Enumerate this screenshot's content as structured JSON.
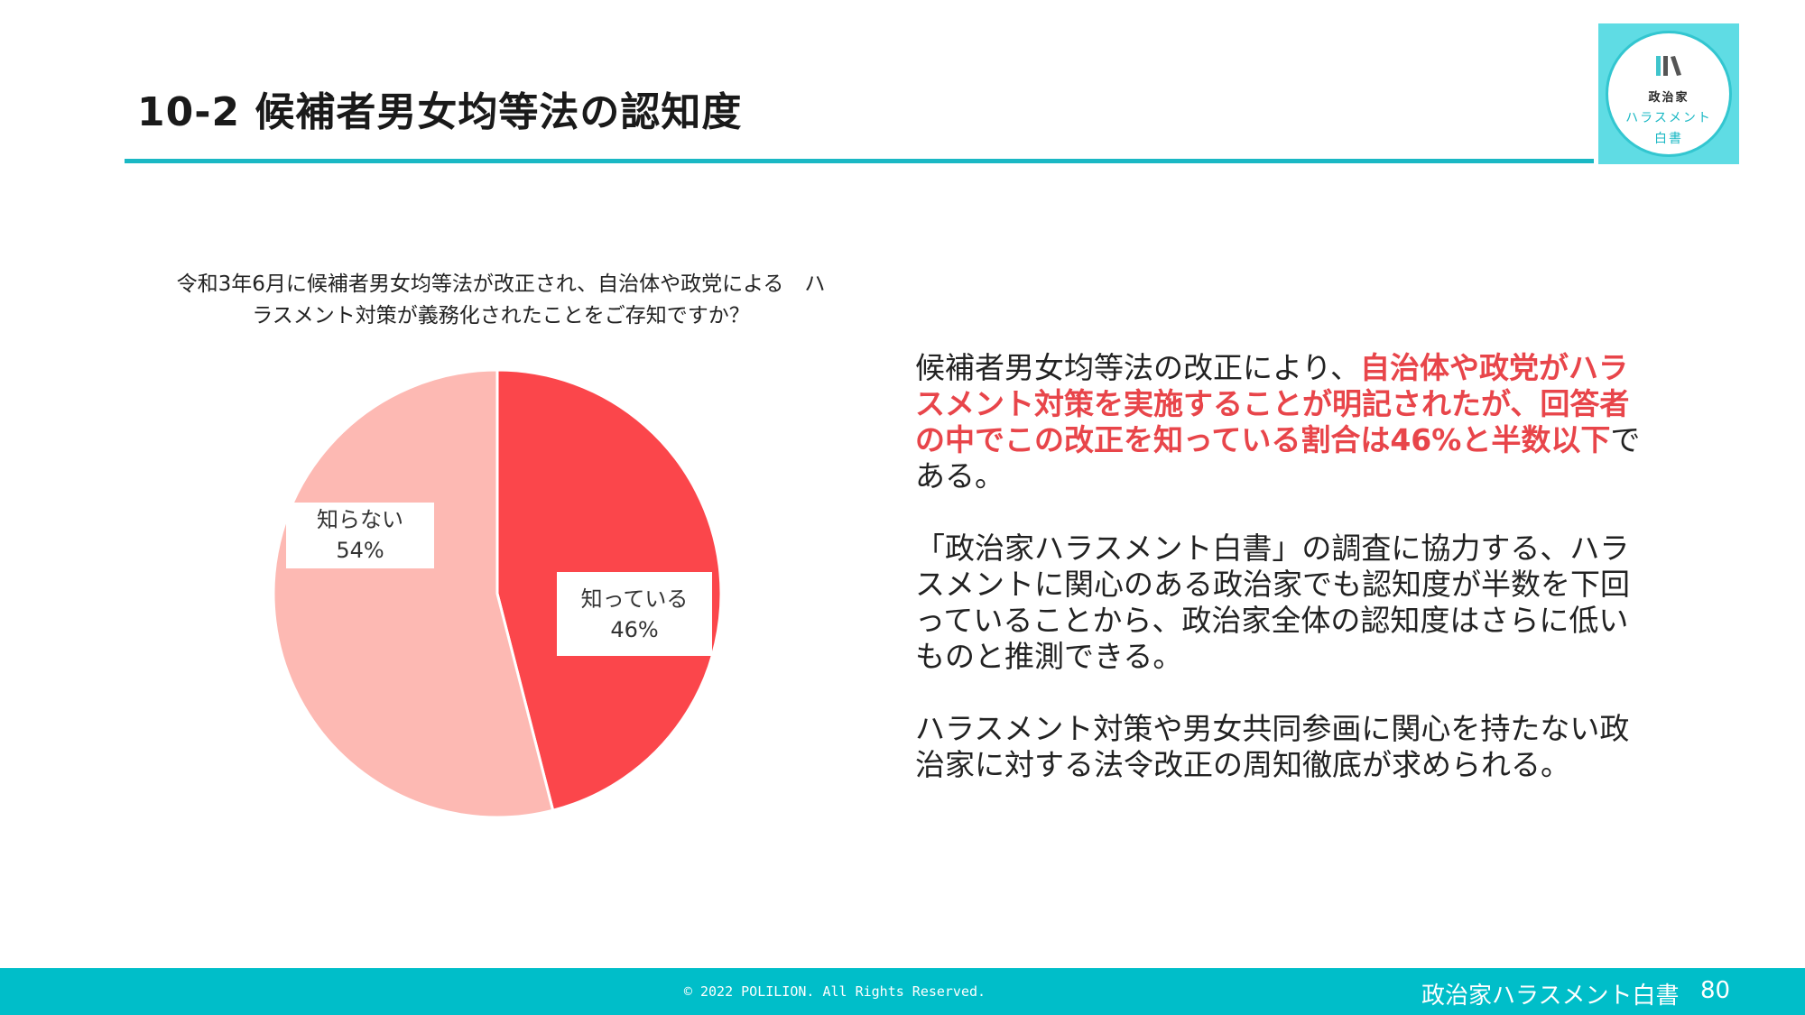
{
  "slide": {
    "title": "10-2 候補者男女均等法の認知度"
  },
  "logo": {
    "line1": "政治家",
    "line2": "ハラスメント",
    "line3": "白書"
  },
  "chart_data": {
    "type": "pie",
    "title": "令和3年6月に候補者男女均等法が改正され、自治体や政党による　ハラスメント対策が義務化されたことをご存知ですか？",
    "categories": [
      "知っている",
      "知らない"
    ],
    "values": [
      46,
      54
    ],
    "value_labels": [
      "46%",
      "54%"
    ],
    "colors": [
      "#fb464b",
      "#fdb9b3"
    ],
    "start": "12 o'clock, clockwise"
  },
  "body": {
    "p1_pre": "候補者男女均等法の改正により、",
    "p1_highlight": "自治体や政党がハラスメント対策を実施することが明記されたが、回答者の中でこの改正を知っている割合は46%と半数以下",
    "p1_post": "である。",
    "p2": "「政治家ハラスメント白書」の調査に協力する、ハラスメントに関心のある政治家でも認知度が半数を下回っていることから、政治家全体の認知度はさらに低いものと推測できる。",
    "p3": "ハラスメント対策や男女共同参画に関心を持たない政治家に対する法令改正の周知徹底が求められる。"
  },
  "footer": {
    "copyright": "© 2022 POLILION. All Rights Reserved.",
    "brand": "政治家ハラスメント白書",
    "page_number": "80"
  },
  "colors": {
    "accent": "#1ab8c4",
    "footer_bg": "#00bec9",
    "highlight": "#e8454a"
  }
}
